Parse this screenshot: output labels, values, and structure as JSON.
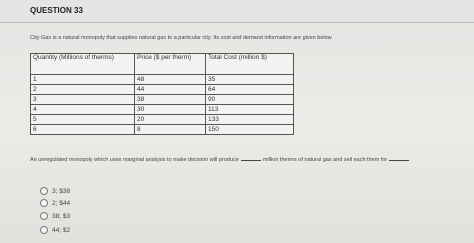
{
  "header": {
    "title": "QUESTION 33"
  },
  "intro": "City Gas is a natural monopoly that supplies natural gas to a particular city. Its cost and demand information are given below",
  "table": {
    "headers": [
      "Quantity (Millions of therms)",
      "Price ($ per therm)",
      "Total Cost (million $)"
    ],
    "rows": [
      [
        1,
        48,
        35
      ],
      [
        2,
        44,
        64
      ],
      [
        3,
        38,
        90
      ],
      [
        4,
        30,
        113
      ],
      [
        5,
        20,
        133
      ],
      [
        6,
        8,
        150
      ]
    ]
  },
  "question": {
    "part1": "An unregulated monopoly which uses marginal analysis to make decision will produce",
    "part2": "million therms of natural gas and sell each them for"
  },
  "options": [
    "3; $38",
    "2; $44",
    "38; $3",
    "44; $2"
  ]
}
